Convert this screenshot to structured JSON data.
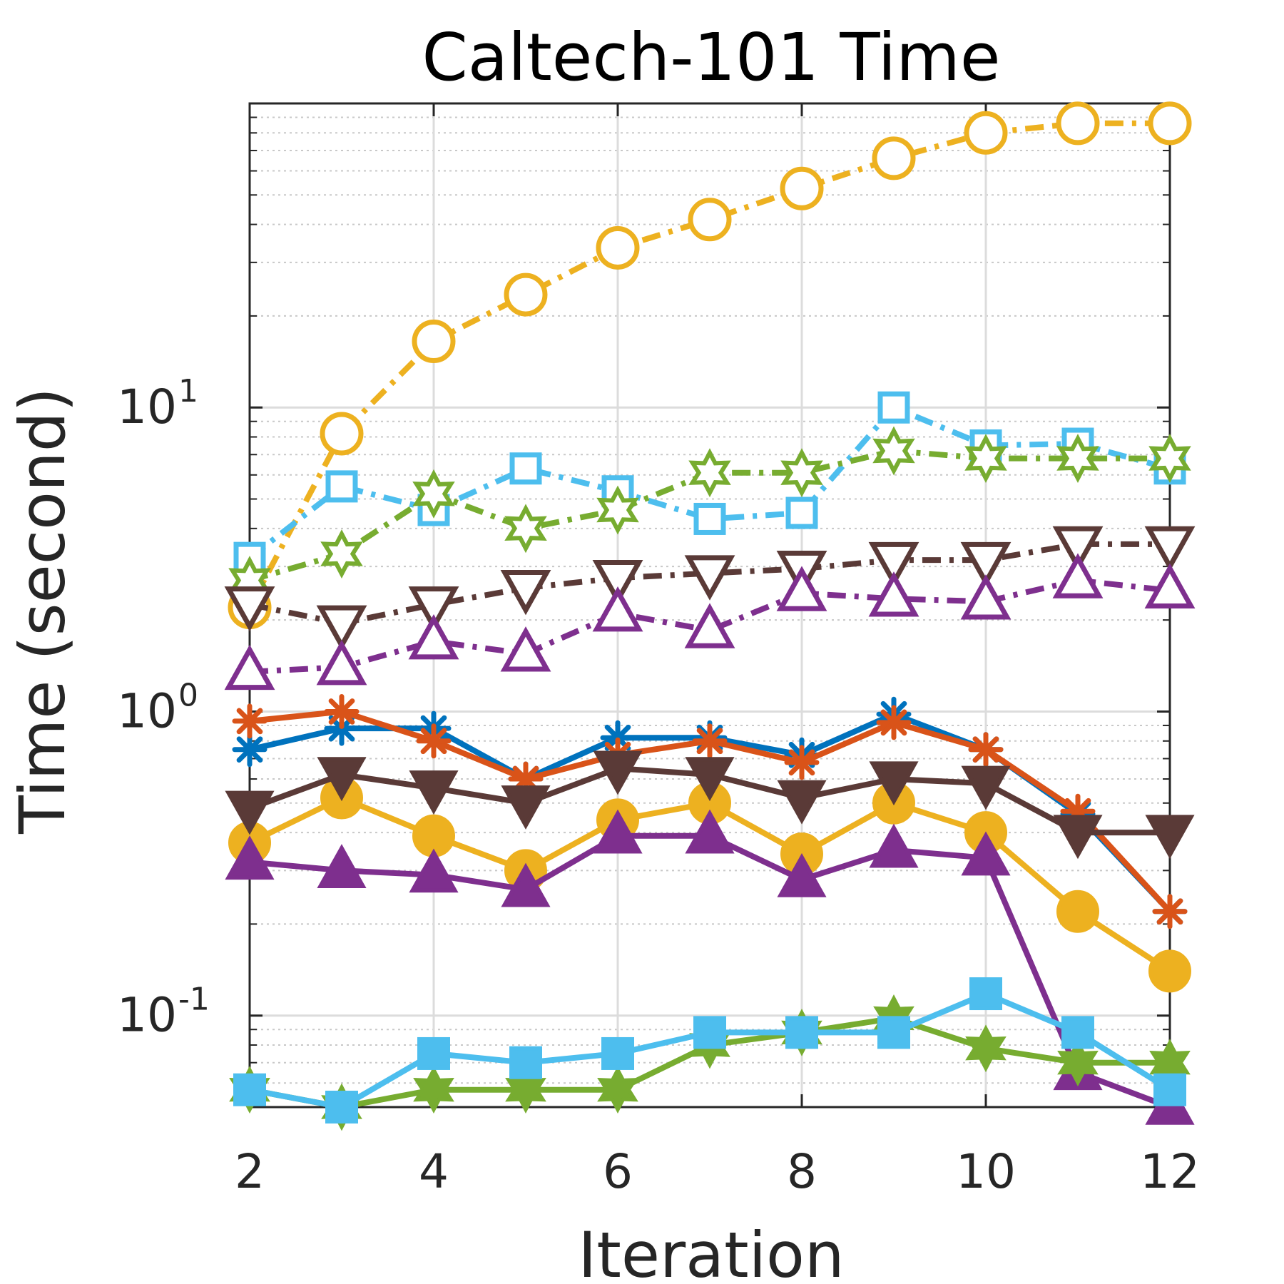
{
  "chart_data": {
    "type": "line",
    "title": "Caltech-101 Time",
    "xlabel": "Iteration",
    "ylabel": "Time (second)",
    "yscale": "log",
    "xlim": [
      2,
      12
    ],
    "ylim": [
      0.05,
      100
    ],
    "xticks": [
      2,
      4,
      6,
      8,
      10,
      12
    ],
    "yticks": [
      {
        "base": "10",
        "exp": "-1",
        "value": 0.1
      },
      {
        "base": "10",
        "exp": "0",
        "value": 1
      },
      {
        "base": "10",
        "exp": "1",
        "value": 10
      }
    ],
    "grid": true,
    "x": [
      2,
      3,
      4,
      5,
      6,
      7,
      8,
      9,
      10,
      11,
      12
    ],
    "series": [
      {
        "name": "blue-asterisk",
        "color": "#0072BD",
        "marker": "asterisk",
        "filled": true,
        "dash": "solid",
        "values": [
          0.75,
          0.88,
          0.88,
          0.6,
          0.82,
          0.82,
          0.72,
          0.98,
          0.75,
          0.46,
          0.22
        ]
      },
      {
        "name": "orange-asterisk",
        "color": "#D95319",
        "marker": "asterisk",
        "filled": true,
        "dash": "solid",
        "values": [
          0.93,
          1.0,
          0.8,
          0.6,
          0.72,
          0.8,
          0.68,
          0.92,
          0.75,
          0.47,
          0.22
        ]
      },
      {
        "name": "yellow-circle",
        "color": "#EDB120",
        "marker": "circle",
        "filled": true,
        "dash": "solid",
        "values": [
          0.37,
          0.52,
          0.39,
          0.3,
          0.44,
          0.5,
          0.34,
          0.5,
          0.4,
          0.22,
          0.14
        ]
      },
      {
        "name": "purple-triangle-up",
        "color": "#7E2F8E",
        "marker": "triangle-up",
        "filled": true,
        "dash": "solid",
        "values": [
          0.32,
          0.3,
          0.29,
          0.26,
          0.39,
          0.39,
          0.28,
          0.35,
          0.33,
          0.065,
          0.05
        ]
      },
      {
        "name": "green-hexagram",
        "color": "#77AC30",
        "marker": "hexagram",
        "filled": true,
        "dash": "solid",
        "values": [
          0.057,
          0.05,
          0.057,
          0.057,
          0.057,
          0.08,
          0.088,
          0.098,
          0.078,
          0.07,
          0.07
        ]
      },
      {
        "name": "cyan-square",
        "color": "#4DBEEE",
        "marker": "square",
        "filled": true,
        "dash": "solid",
        "values": [
          0.057,
          0.05,
          0.075,
          0.07,
          0.075,
          0.088,
          0.088,
          0.088,
          0.118,
          0.088,
          0.057
        ]
      },
      {
        "name": "brown-triangle-down",
        "color": "#5A3A37",
        "marker": "triangle-down",
        "filled": true,
        "dash": "solid",
        "values": [
          0.48,
          0.62,
          0.56,
          0.5,
          0.65,
          0.62,
          0.52,
          0.6,
          0.58,
          0.4,
          0.4
        ]
      },
      {
        "name": "yellow-circle-open",
        "color": "#EDB120",
        "marker": "circle",
        "filled": false,
        "dash": "dashdot",
        "values": [
          2.2,
          8.2,
          16.5,
          23.5,
          33.5,
          41.5,
          52.5,
          66,
          80,
          86,
          86
        ]
      },
      {
        "name": "cyan-square-open",
        "color": "#4DBEEE",
        "marker": "square",
        "filled": false,
        "dash": "dashdot",
        "values": [
          3.2,
          5.5,
          4.6,
          6.3,
          5.3,
          4.3,
          4.5,
          10,
          7.5,
          7.6,
          6.3
        ]
      },
      {
        "name": "green-hexagram-open",
        "color": "#77AC30",
        "marker": "hexagram",
        "filled": false,
        "dash": "dashdot",
        "values": [
          2.7,
          3.3,
          5.2,
          4.0,
          4.6,
          6.1,
          6.1,
          7.2,
          6.8,
          6.8,
          6.8
        ]
      },
      {
        "name": "brown-triangle-down-open",
        "color": "#5A3A37",
        "marker": "triangle-down",
        "filled": false,
        "dash": "dashdot",
        "values": [
          2.25,
          1.95,
          2.25,
          2.55,
          2.75,
          2.85,
          2.95,
          3.15,
          3.15,
          3.55,
          3.55
        ]
      },
      {
        "name": "purple-triangle-up-open",
        "color": "#7E2F8E",
        "marker": "triangle-up",
        "filled": false,
        "dash": "dashdot",
        "values": [
          1.35,
          1.4,
          1.7,
          1.55,
          2.1,
          1.85,
          2.45,
          2.35,
          2.3,
          2.7,
          2.5
        ]
      }
    ]
  }
}
